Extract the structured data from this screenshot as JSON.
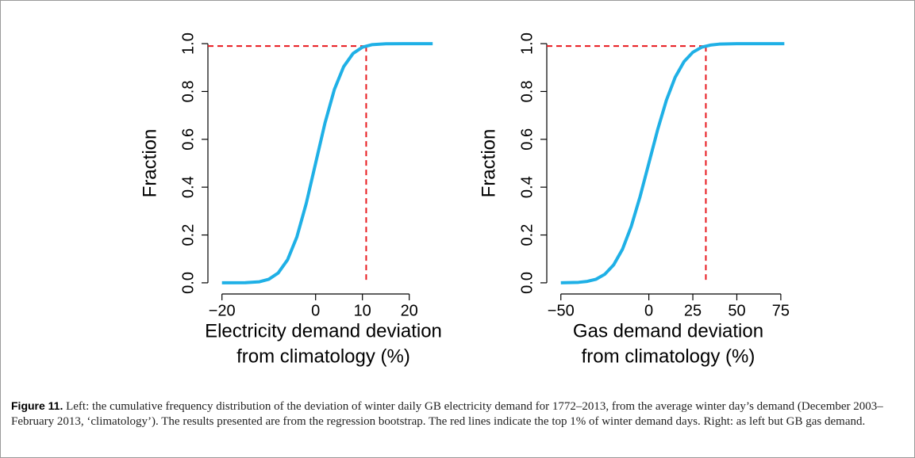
{
  "chart_data": [
    {
      "type": "line",
      "ylabel": "Fraction",
      "xlabel": [
        "Electricity demand deviation",
        "from climatology (%)"
      ],
      "x": [
        -20,
        -15,
        -12,
        -10,
        -8,
        -6,
        -4,
        -2,
        0,
        2,
        4,
        6,
        8,
        10,
        12,
        15,
        20,
        25
      ],
      "values": [
        0,
        0.0006,
        0.0045,
        0.015,
        0.041,
        0.096,
        0.192,
        0.332,
        0.5,
        0.668,
        0.808,
        0.904,
        0.959,
        0.985,
        0.9955,
        0.9994,
        1,
        1
      ],
      "color": "#1fb0e6",
      "threshold": {
        "x": 10.8,
        "y": 0.99,
        "color": "#e8191e"
      },
      "xlim": [
        -23,
        27
      ],
      "ylim": [
        -0.04,
        1.04
      ],
      "xticks": [
        {
          "value": -20,
          "label": "−20"
        },
        0,
        10,
        20
      ],
      "yticks": [
        {
          "value": 0,
          "label": "0.0"
        },
        {
          "value": 0.2,
          "label": "0.2"
        },
        {
          "value": 0.4,
          "label": "0.4"
        },
        {
          "value": 0.6,
          "label": "0.6"
        },
        {
          "value": 0.8,
          "label": "0.8"
        },
        {
          "value": 1,
          "label": "1.0"
        }
      ]
    },
    {
      "type": "line",
      "ylabel": "Fraction",
      "xlabel": [
        "Gas demand deviation",
        "from climatology (%)"
      ],
      "x": [
        -50,
        -40,
        -35,
        -30,
        -25,
        -20,
        -15,
        -10,
        -5,
        0,
        5,
        10,
        15,
        20,
        25,
        30,
        35,
        40,
        50,
        77
      ],
      "values": [
        0,
        0.002,
        0.006,
        0.015,
        0.036,
        0.075,
        0.14,
        0.236,
        0.36,
        0.5,
        0.64,
        0.764,
        0.86,
        0.925,
        0.964,
        0.985,
        0.994,
        0.998,
        1,
        1
      ],
      "color": "#1fb0e6",
      "threshold": {
        "x": 32.4,
        "y": 0.99,
        "color": "#e8191e"
      },
      "xlim": [
        -58,
        80
      ],
      "ylim": [
        -0.04,
        1.04
      ],
      "xticks": [
        {
          "value": -50,
          "label": "−50"
        },
        0,
        25,
        50,
        75
      ],
      "yticks": [
        {
          "value": 0,
          "label": "0.0"
        },
        {
          "value": 0.2,
          "label": "0.2"
        },
        {
          "value": 0.4,
          "label": "0.4"
        },
        {
          "value": 0.6,
          "label": "0.6"
        },
        {
          "value": 0.8,
          "label": "0.8"
        },
        {
          "value": 1,
          "label": "1.0"
        }
      ]
    }
  ],
  "caption": {
    "label": "Figure 11.",
    "text": "Left: the cumulative frequency distribution of the deviation of winter daily GB electricity demand for 1772–2013, from the average winter day’s demand (December 2003–February 2013, ‘climatology’). The results presented are from the regression bootstrap. The red lines indicate the top 1% of winter demand days. Right: as left but GB gas demand."
  }
}
